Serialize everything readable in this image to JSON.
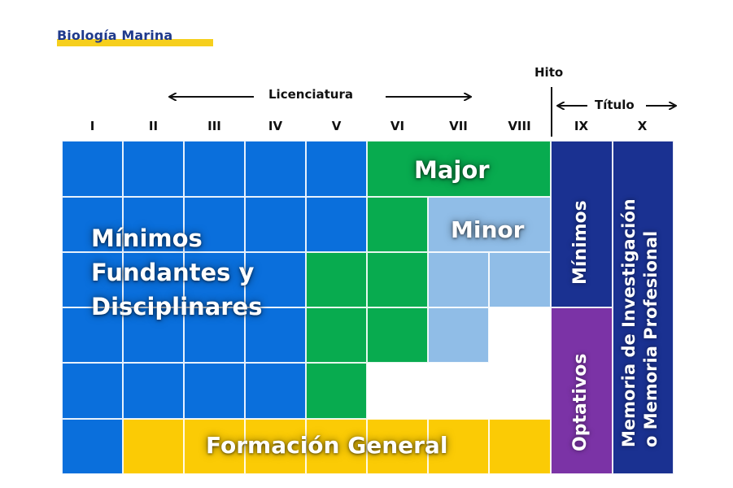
{
  "title": "Biología Marina",
  "headers": {
    "hito": "Hito",
    "licenciatura": "Licenciatura",
    "titulo": "Título"
  },
  "semesters": [
    "I",
    "II",
    "III",
    "IV",
    "V",
    "VI",
    "VII",
    "VIII",
    "IX",
    "X"
  ],
  "blocks": {
    "minimos_fundantes_line1": "Mínimos",
    "minimos_fundantes_line2": "Fundantes y",
    "minimos_fundantes_line3": "Disciplinares",
    "major": "Major",
    "minor": "Minor",
    "formacion_general": "Formación General",
    "minimos": "Mínimos",
    "optativos": "Optativos",
    "memoria_line1": "Memoria de Investigación",
    "memoria_line2": "o Memoria Profesional"
  },
  "colors": {
    "minimos_fundantes": "#0a6fdc",
    "major": "#08ab4f",
    "minor": "#90bde7",
    "formacion_general": "#fbcb05",
    "minimos": "#1a3191",
    "optativos": "#7b33a6",
    "memoria": "#1a3191",
    "title_highlight": "#f6cf1d"
  }
}
